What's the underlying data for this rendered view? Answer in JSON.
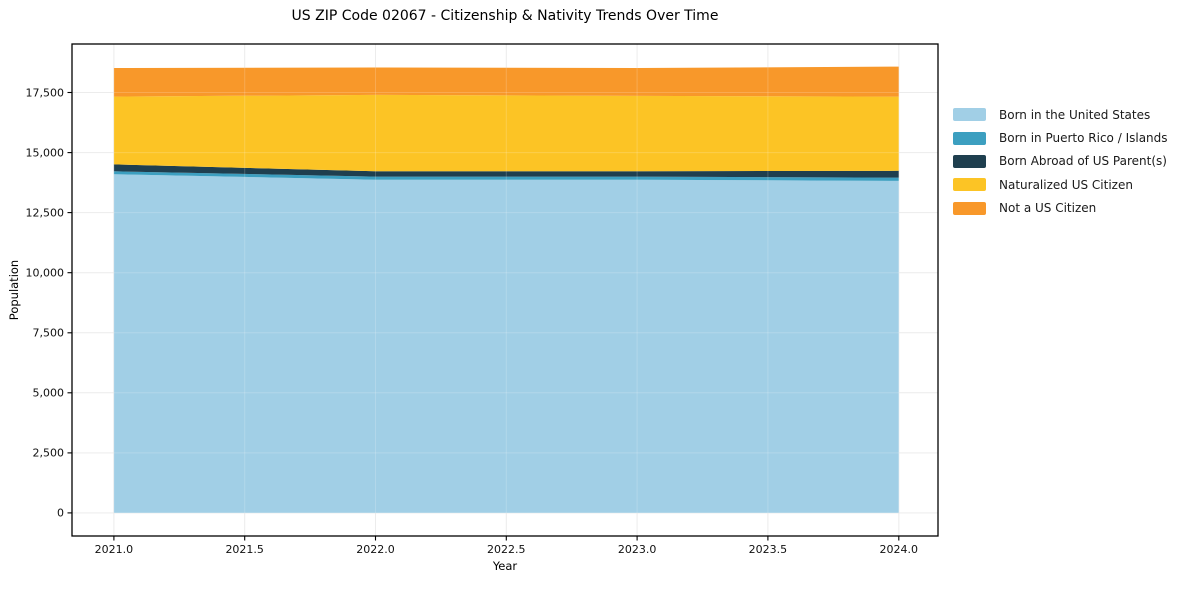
{
  "chart_data": {
    "type": "area",
    "stacked": true,
    "title": "US ZIP Code 02067 - Citizenship & Nativity Trends Over Time",
    "xlabel": "Year",
    "ylabel": "Population",
    "x": [
      2021,
      2022,
      2023,
      2024
    ],
    "series": [
      {
        "name": "Born in the United States",
        "color": "#a1cfe6",
        "values": [
          14100,
          13870,
          13870,
          13820
        ]
      },
      {
        "name": "Born in Puerto Rico / Islands",
        "color": "#3c9fc0",
        "values": [
          120,
          130,
          130,
          140
        ]
      },
      {
        "name": "Born Abroad of US Parent(s)",
        "color": "#1f3f4f",
        "values": [
          290,
          220,
          220,
          280
        ]
      },
      {
        "name": "Naturalized US Citizen",
        "color": "#fcc425",
        "values": [
          2820,
          3180,
          3140,
          3090
        ]
      },
      {
        "name": "Not a US Citizen",
        "color": "#f8982a",
        "values": [
          1190,
          1140,
          1160,
          1250
        ]
      }
    ],
    "totals": [
      18520,
      18540,
      18520,
      18580
    ],
    "x_ticks": [
      {
        "value": 2021.0,
        "label": "2021.0"
      },
      {
        "value": 2021.5,
        "label": "2021.5"
      },
      {
        "value": 2022.0,
        "label": "2022.0"
      },
      {
        "value": 2022.5,
        "label": "2022.5"
      },
      {
        "value": 2023.0,
        "label": "2023.0"
      },
      {
        "value": 2023.5,
        "label": "2023.5"
      },
      {
        "value": 2024.0,
        "label": "2024.0"
      }
    ],
    "y_ticks": [
      {
        "value": 0,
        "label": "0"
      },
      {
        "value": 2500,
        "label": "2,500"
      },
      {
        "value": 5000,
        "label": "5,000"
      },
      {
        "value": 7500,
        "label": "7,500"
      },
      {
        "value": 10000,
        "label": "10,000"
      },
      {
        "value": 12500,
        "label": "12,500"
      },
      {
        "value": 15000,
        "label": "15,000"
      },
      {
        "value": 17500,
        "label": "17,500"
      }
    ],
    "x_range": [
      2020.84,
      2024.15
    ],
    "y_range": [
      -960,
      19520
    ],
    "grid": true,
    "legend_position": "right",
    "grid_color": "#d9d9d9",
    "spine_color": "#000000",
    "tick_label_color": "#111111"
  }
}
